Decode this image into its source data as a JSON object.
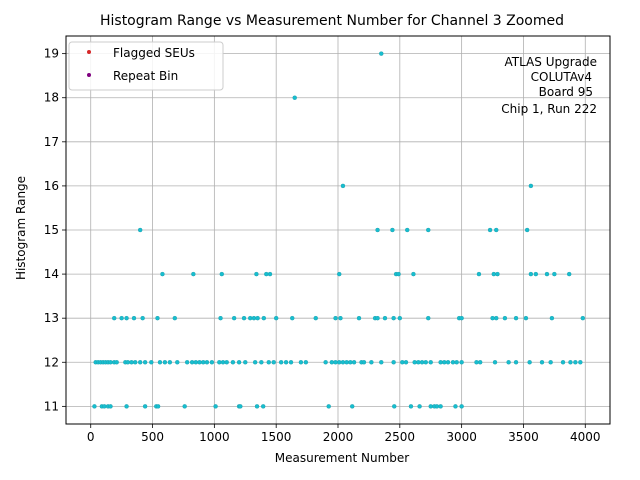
{
  "chart_data": {
    "type": "scatter",
    "title": "Histogram Range vs Measurement Number for Channel 3 Zoomed",
    "xlabel": "Measurement Number",
    "ylabel": "Histogram Range",
    "xlim": [
      -200,
      4200
    ],
    "ylim": [
      10.6,
      19.4
    ],
    "xticks": [
      0,
      500,
      1000,
      1500,
      2000,
      2500,
      3000,
      3500,
      4000
    ],
    "yticks": [
      11,
      12,
      13,
      14,
      15,
      16,
      17,
      18,
      19
    ],
    "grid": true,
    "legend": {
      "placement": "top-left",
      "entries": [
        {
          "label": "Flagged SEUs",
          "color": "#d62728"
        },
        {
          "label": "Repeat Bin",
          "color": "#800080"
        }
      ]
    },
    "annotation": [
      "ATLAS Upgrade",
      "COLUTAv4",
      "Board 95",
      "Chip 1, Run 222"
    ],
    "series": [
      {
        "color": "#17becf",
        "points": [
          [
            30,
            11
          ],
          [
            90,
            11
          ],
          [
            110,
            11
          ],
          [
            140,
            11
          ],
          [
            160,
            11
          ],
          [
            290,
            11
          ],
          [
            440,
            11
          ],
          [
            530,
            11
          ],
          [
            545,
            11
          ],
          [
            760,
            11
          ],
          [
            1010,
            11
          ],
          [
            1200,
            11
          ],
          [
            1210,
            11
          ],
          [
            1345,
            11
          ],
          [
            1395,
            11
          ],
          [
            1925,
            11
          ],
          [
            2115,
            11
          ],
          [
            2455,
            11
          ],
          [
            2590,
            11
          ],
          [
            2660,
            11
          ],
          [
            2750,
            11
          ],
          [
            2780,
            11
          ],
          [
            2800,
            11
          ],
          [
            2830,
            11
          ],
          [
            2950,
            11
          ],
          [
            3000,
            11
          ],
          [
            40,
            12
          ],
          [
            60,
            12
          ],
          [
            80,
            12
          ],
          [
            100,
            12
          ],
          [
            120,
            12
          ],
          [
            140,
            12
          ],
          [
            160,
            12
          ],
          [
            190,
            12
          ],
          [
            210,
            12
          ],
          [
            280,
            12
          ],
          [
            300,
            12
          ],
          [
            330,
            12
          ],
          [
            360,
            12
          ],
          [
            400,
            12
          ],
          [
            440,
            12
          ],
          [
            490,
            12
          ],
          [
            560,
            12
          ],
          [
            600,
            12
          ],
          [
            640,
            12
          ],
          [
            700,
            12
          ],
          [
            780,
            12
          ],
          [
            820,
            12
          ],
          [
            850,
            12
          ],
          [
            880,
            12
          ],
          [
            910,
            12
          ],
          [
            940,
            12
          ],
          [
            980,
            12
          ],
          [
            1040,
            12
          ],
          [
            1070,
            12
          ],
          [
            1100,
            12
          ],
          [
            1150,
            12
          ],
          [
            1200,
            12
          ],
          [
            1250,
            12
          ],
          [
            1330,
            12
          ],
          [
            1380,
            12
          ],
          [
            1440,
            12
          ],
          [
            1480,
            12
          ],
          [
            1540,
            12
          ],
          [
            1580,
            12
          ],
          [
            1620,
            12
          ],
          [
            1700,
            12
          ],
          [
            1740,
            12
          ],
          [
            1900,
            12
          ],
          [
            1950,
            12
          ],
          [
            1980,
            12
          ],
          [
            2010,
            12
          ],
          [
            2040,
            12
          ],
          [
            2070,
            12
          ],
          [
            2100,
            12
          ],
          [
            2130,
            12
          ],
          [
            2190,
            12
          ],
          [
            2210,
            12
          ],
          [
            2270,
            12
          ],
          [
            2350,
            12
          ],
          [
            2450,
            12
          ],
          [
            2520,
            12
          ],
          [
            2550,
            12
          ],
          [
            2620,
            12
          ],
          [
            2650,
            12
          ],
          [
            2680,
            12
          ],
          [
            2710,
            12
          ],
          [
            2750,
            12
          ],
          [
            2830,
            12
          ],
          [
            2860,
            12
          ],
          [
            2890,
            12
          ],
          [
            2930,
            12
          ],
          [
            2960,
            12
          ],
          [
            3000,
            12
          ],
          [
            3120,
            12
          ],
          [
            3150,
            12
          ],
          [
            3270,
            12
          ],
          [
            3380,
            12
          ],
          [
            3440,
            12
          ],
          [
            3550,
            12
          ],
          [
            3650,
            12
          ],
          [
            3720,
            12
          ],
          [
            3820,
            12
          ],
          [
            3880,
            12
          ],
          [
            3920,
            12
          ],
          [
            3960,
            12
          ],
          [
            190,
            13
          ],
          [
            250,
            13
          ],
          [
            290,
            13
          ],
          [
            350,
            13
          ],
          [
            420,
            13
          ],
          [
            540,
            13
          ],
          [
            680,
            13
          ],
          [
            1050,
            13
          ],
          [
            1160,
            13
          ],
          [
            1240,
            13
          ],
          [
            1290,
            13
          ],
          [
            1320,
            13
          ],
          [
            1350,
            13
          ],
          [
            1400,
            13
          ],
          [
            1500,
            13
          ],
          [
            1630,
            13
          ],
          [
            1820,
            13
          ],
          [
            1980,
            13
          ],
          [
            2020,
            13
          ],
          [
            2170,
            13
          ],
          [
            2300,
            13
          ],
          [
            2320,
            13
          ],
          [
            2380,
            13
          ],
          [
            2450,
            13
          ],
          [
            2500,
            13
          ],
          [
            2730,
            13
          ],
          [
            2980,
            13
          ],
          [
            3000,
            13
          ],
          [
            3250,
            13
          ],
          [
            3280,
            13
          ],
          [
            3350,
            13
          ],
          [
            3440,
            13
          ],
          [
            3520,
            13
          ],
          [
            3730,
            13
          ],
          [
            3980,
            13
          ],
          [
            580,
            14
          ],
          [
            830,
            14
          ],
          [
            1060,
            14
          ],
          [
            1340,
            14
          ],
          [
            1420,
            14
          ],
          [
            1450,
            14
          ],
          [
            2010,
            14
          ],
          [
            2470,
            14
          ],
          [
            2490,
            14
          ],
          [
            2610,
            14
          ],
          [
            3140,
            14
          ],
          [
            3260,
            14
          ],
          [
            3290,
            14
          ],
          [
            3560,
            14
          ],
          [
            3600,
            14
          ],
          [
            3690,
            14
          ],
          [
            3750,
            14
          ],
          [
            3870,
            14
          ],
          [
            400,
            15
          ],
          [
            2320,
            15
          ],
          [
            2440,
            15
          ],
          [
            2560,
            15
          ],
          [
            2730,
            15
          ],
          [
            3230,
            15
          ],
          [
            3280,
            15
          ],
          [
            3530,
            15
          ],
          [
            2040,
            16
          ],
          [
            3560,
            16
          ],
          [
            1650,
            18
          ],
          [
            2350,
            19
          ]
        ]
      }
    ]
  }
}
